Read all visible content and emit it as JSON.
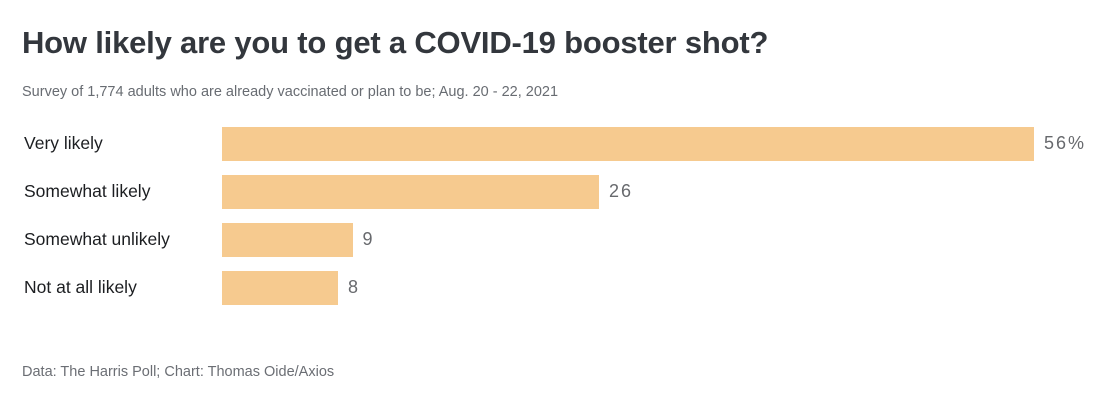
{
  "chart_data": {
    "type": "bar",
    "orientation": "horizontal",
    "title": "How likely are you to get a COVID-19 booster shot?",
    "subtitle": "Survey of 1,774 adults who are already vaccinated or plan to be; Aug. 20 - 22, 2021",
    "categories": [
      "Very likely",
      "Somewhat likely",
      "Somewhat unlikely",
      "Not at all likely"
    ],
    "values": [
      56,
      26,
      9,
      8
    ],
    "value_labels": [
      "56%",
      "26",
      "9",
      "8"
    ],
    "unit": "percent of respondents",
    "xlim": [
      0,
      56
    ],
    "grid": false,
    "legend": false,
    "bar_color": "#f6ca8f"
  },
  "footer": {
    "credit": "Data: The Harris Poll; Chart: Thomas Oide/Axios"
  }
}
